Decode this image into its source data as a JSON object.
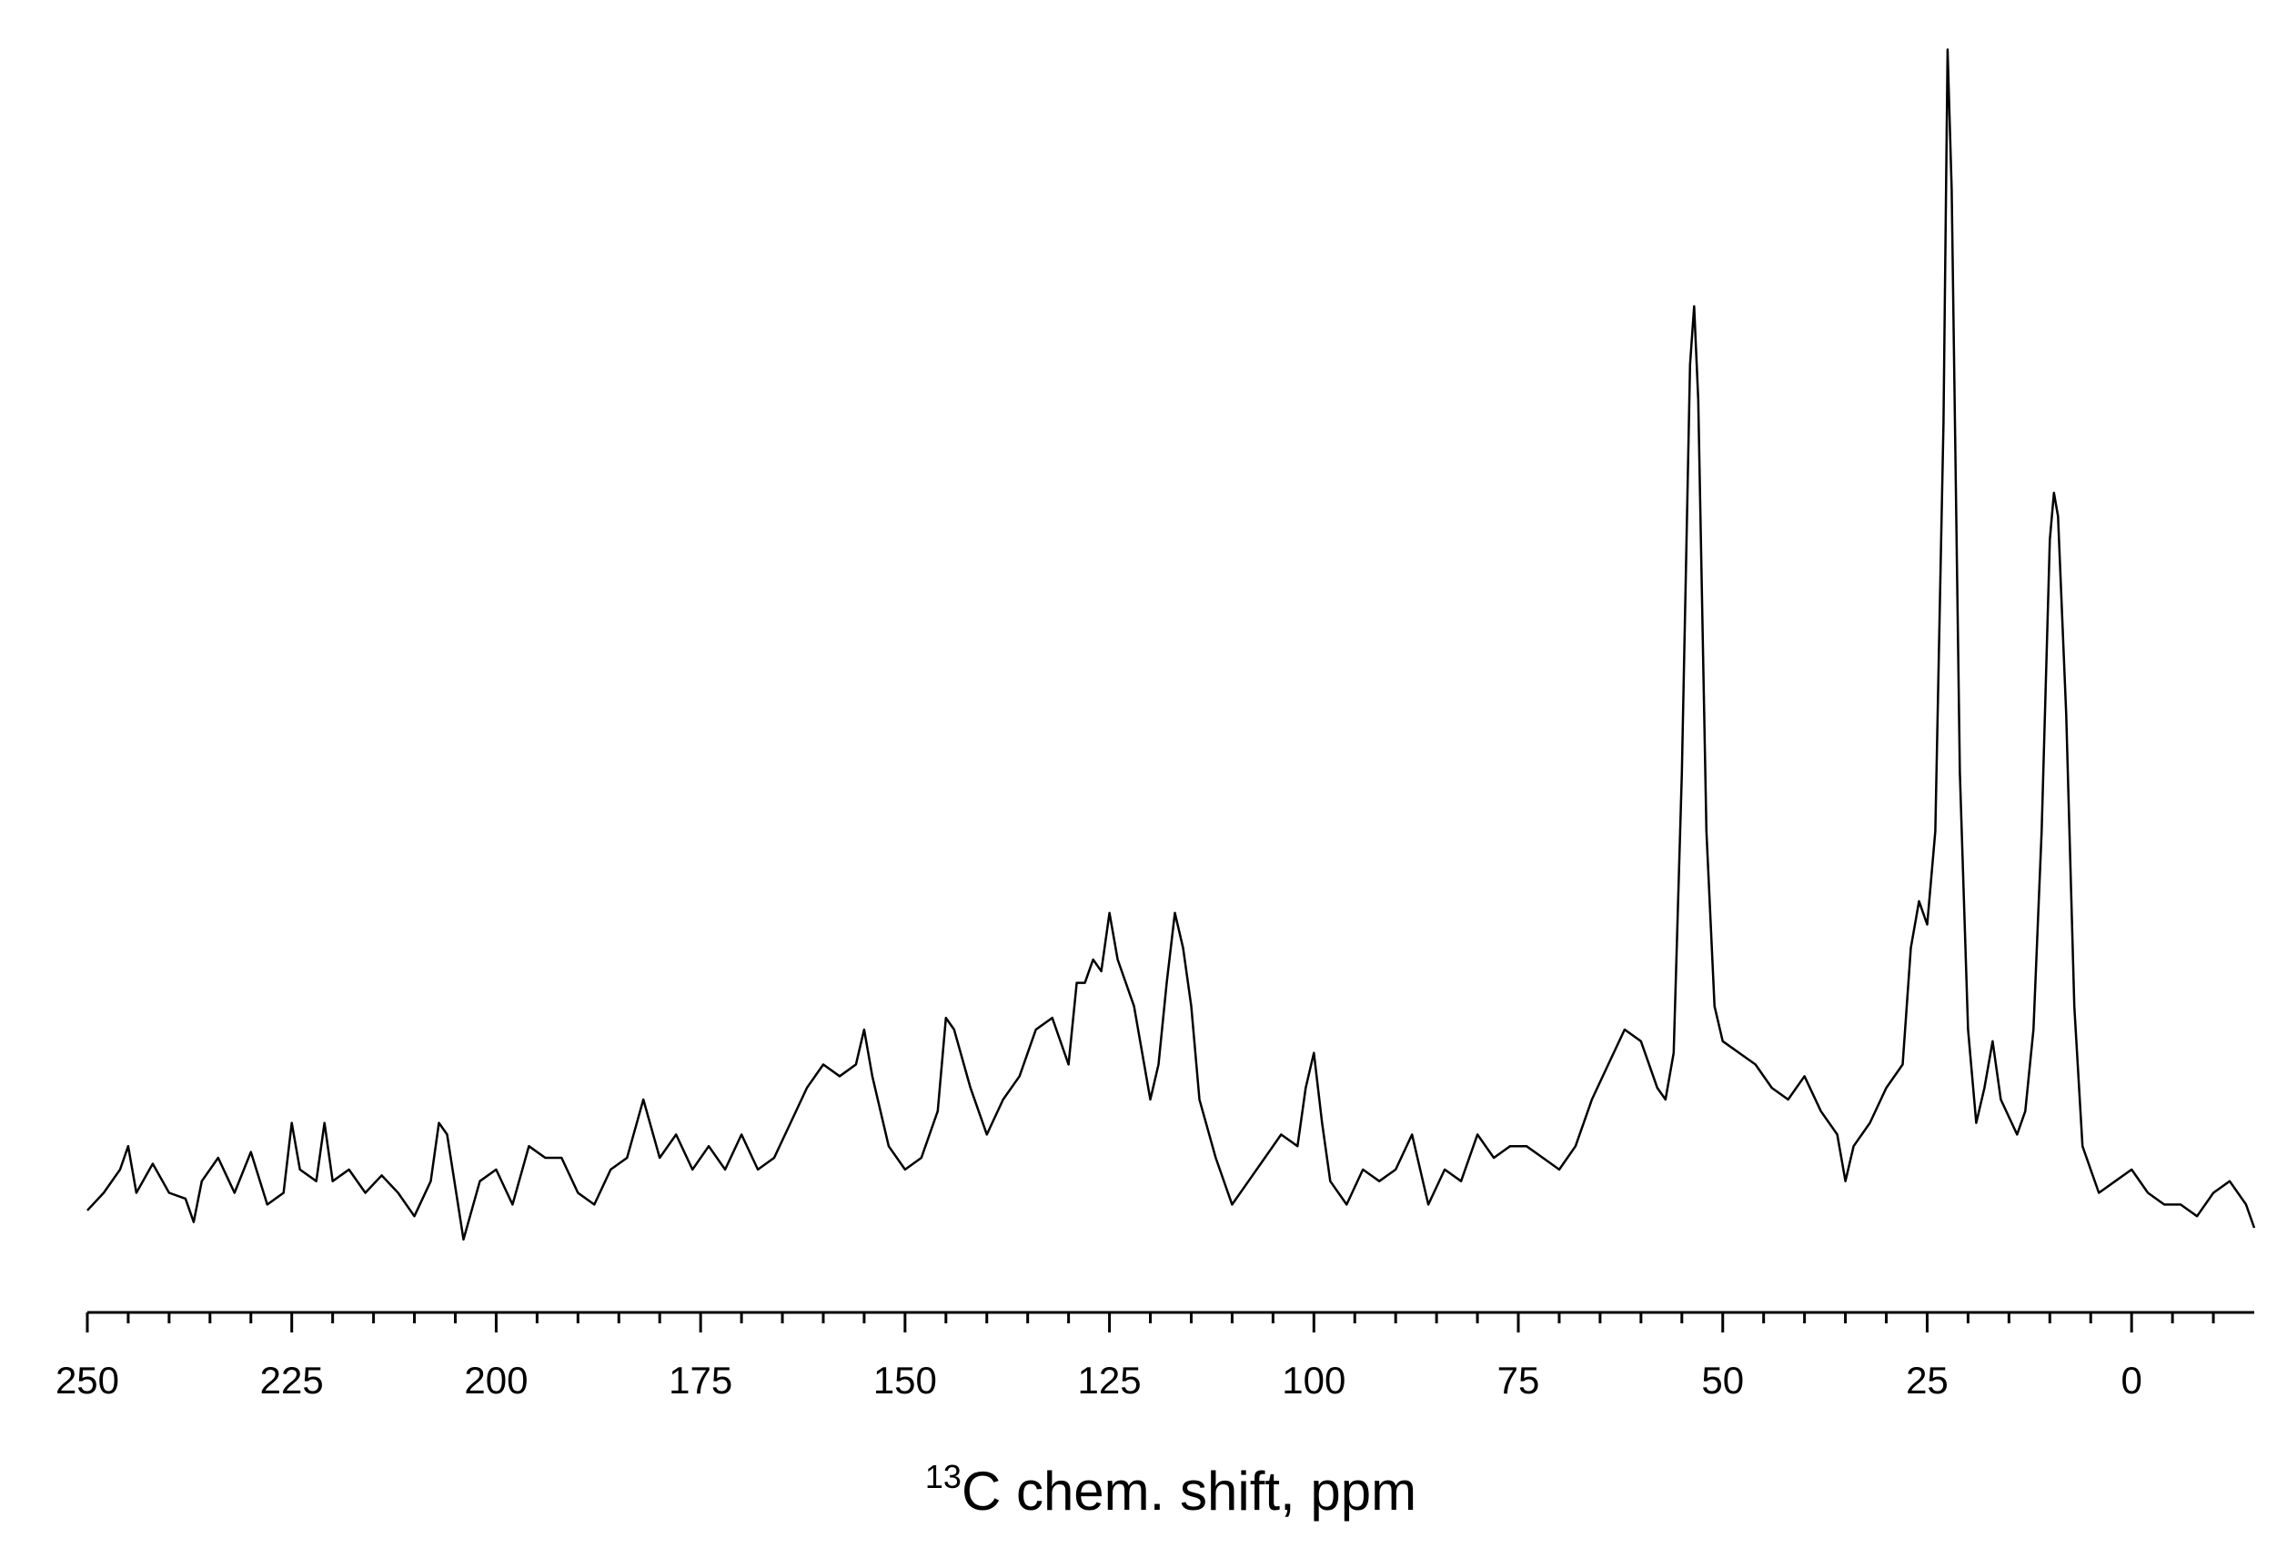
{
  "chart_data": {
    "type": "line",
    "xlabel": {
      "superscript": "13",
      "text": "C chem. shift, ppm"
    },
    "xlim": [
      250,
      -15
    ],
    "xticks": [
      250,
      225,
      200,
      175,
      150,
      125,
      100,
      75,
      50,
      25,
      0
    ],
    "xticks_minor": [
      245,
      240,
      235,
      230,
      220,
      215,
      210,
      205,
      195,
      190,
      185,
      180,
      170,
      165,
      160,
      155,
      145,
      140,
      135,
      130,
      120,
      115,
      110,
      105,
      95,
      90,
      85,
      80,
      70,
      65,
      60,
      55,
      45,
      40,
      35,
      30,
      20,
      15,
      10,
      5,
      -5,
      -10
    ],
    "ylim": [
      -6.25,
      106.25
    ],
    "color": "#000000",
    "x": [
      250,
      248,
      246,
      245,
      244,
      242,
      240,
      238,
      237,
      236,
      234,
      232,
      230,
      228,
      226,
      225,
      224,
      222,
      221,
      220,
      218,
      216,
      214,
      212,
      210,
      208,
      207,
      206,
      204,
      202,
      200,
      198,
      196,
      194,
      192,
      190,
      188,
      186,
      184,
      182,
      180,
      178,
      176,
      174,
      172,
      170,
      168,
      166,
      164,
      162,
      160,
      158,
      156,
      155,
      154,
      152,
      150,
      148,
      146,
      145,
      144,
      142,
      140,
      138,
      136,
      134,
      132,
      130,
      129,
      128,
      127,
      126,
      125,
      124,
      122,
      120,
      119,
      118,
      117,
      116,
      115,
      114,
      112,
      110,
      108,
      106,
      104,
      102,
      101,
      100,
      99,
      98,
      96,
      94,
      92,
      90,
      88,
      86,
      84,
      82,
      80,
      78,
      76,
      74,
      72,
      70,
      68,
      66,
      64,
      62,
      60,
      58,
      57,
      56,
      55,
      54,
      53.5,
      53,
      52,
      51,
      50,
      48,
      46,
      44,
      42,
      40,
      38,
      36,
      35,
      34,
      32,
      30,
      28,
      27,
      26,
      25,
      24,
      23,
      22.5,
      22,
      21,
      20,
      19,
      18,
      17,
      16,
      14,
      13,
      12,
      11,
      10,
      9.5,
      9,
      8,
      7,
      6,
      5,
      4,
      2,
      0,
      -2,
      -4,
      -6,
      -8,
      -10,
      -12,
      -14,
      -15
    ],
    "values": [
      2.5,
      4,
      6,
      8,
      4,
      6.5,
      4,
      3.5,
      1.5,
      5,
      7,
      4,
      7.5,
      3,
      4,
      10,
      6,
      5,
      10,
      5,
      6,
      4,
      5.5,
      4,
      2,
      5,
      10,
      9,
      0,
      5,
      6,
      3,
      8,
      7,
      7,
      4,
      3,
      6,
      7,
      12,
      7,
      9,
      6,
      8,
      6,
      9,
      6,
      7,
      10,
      13,
      15,
      14,
      15,
      18,
      14,
      8,
      6,
      7,
      11,
      19,
      18,
      13,
      9,
      12,
      14,
      18,
      19,
      15,
      22,
      22,
      24,
      23,
      28,
      24,
      20,
      12,
      15,
      22,
      28,
      25,
      20,
      12,
      7,
      3,
      5,
      7,
      9,
      8,
      13,
      16,
      10,
      5,
      3,
      6,
      5,
      6,
      9,
      3,
      6,
      5,
      9,
      7,
      8,
      8,
      7,
      6,
      8,
      12,
      15,
      18,
      17,
      13,
      12,
      16,
      40,
      75,
      80,
      72,
      35,
      20,
      17,
      16,
      15,
      13,
      12,
      14,
      11,
      9,
      5,
      8,
      10,
      13,
      15,
      25,
      29,
      27,
      35,
      70,
      102,
      90,
      40,
      18,
      10,
      13,
      17,
      12,
      9,
      11,
      18,
      35,
      60,
      64,
      62,
      45,
      20,
      8,
      6,
      4,
      5,
      6,
      4,
      3,
      3,
      2,
      4,
      5,
      3,
      1
    ]
  }
}
